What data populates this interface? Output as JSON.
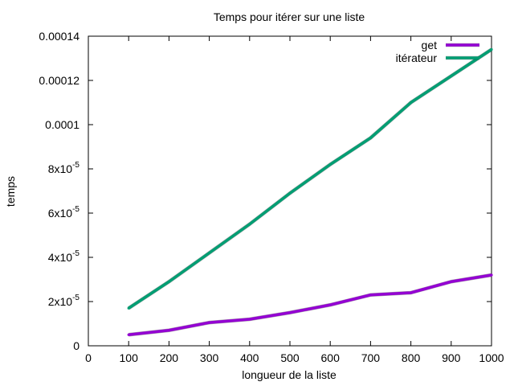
{
  "chart_data": {
    "type": "line",
    "title": "Temps pour itérer sur une liste",
    "xlabel": "longueur de la liste",
    "ylabel": "temps",
    "xlim": [
      0,
      1000
    ],
    "ylim": [
      0,
      0.00014
    ],
    "grid": false,
    "legend_position": "top-right",
    "x_ticks": [
      0,
      100,
      200,
      300,
      400,
      500,
      600,
      700,
      800,
      900,
      1000
    ],
    "y_ticks": [
      {
        "value": 0,
        "mantissa": "0",
        "exponent": ""
      },
      {
        "value": 2e-05,
        "mantissa": "2x10",
        "exponent": "-5"
      },
      {
        "value": 4e-05,
        "mantissa": "4x10",
        "exponent": "-5"
      },
      {
        "value": 6e-05,
        "mantissa": "6x10",
        "exponent": "-5"
      },
      {
        "value": 8e-05,
        "mantissa": "8x10",
        "exponent": "-5"
      },
      {
        "value": 0.0001,
        "mantissa": "0.0001",
        "exponent": ""
      },
      {
        "value": 0.00012,
        "mantissa": "0.00012",
        "exponent": ""
      },
      {
        "value": 0.00014,
        "mantissa": "0.00014",
        "exponent": ""
      }
    ],
    "x": [
      100,
      200,
      300,
      400,
      500,
      600,
      700,
      800,
      900,
      1000
    ],
    "series": [
      {
        "name": "get",
        "color": "#9400d3",
        "values": [
          5e-06,
          7e-06,
          1.05e-05,
          1.2e-05,
          1.5e-05,
          1.85e-05,
          2.3e-05,
          2.4e-05,
          2.9e-05,
          3.2e-05
        ]
      },
      {
        "name": "itérateur",
        "color": "#009e73",
        "values": [
          1.7e-05,
          2.9e-05,
          4.2e-05,
          5.5e-05,
          6.9e-05,
          8.2e-05,
          9.4e-05,
          0.00011,
          0.000122,
          0.000134
        ]
      }
    ]
  }
}
